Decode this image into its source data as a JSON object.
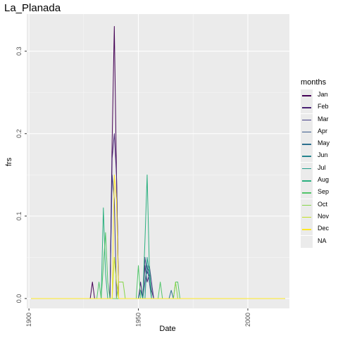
{
  "chart_data": {
    "type": "line",
    "title": "La_Planada",
    "xlabel": "Date",
    "ylabel": "frs",
    "xlim": [
      1899,
      2019
    ],
    "ylim": [
      -0.012,
      0.345
    ],
    "xticks": [
      "1900",
      "1950",
      "2000"
    ],
    "xtick_values": [
      1900,
      1950,
      2000
    ],
    "yticks": [
      "0.0",
      "0.1",
      "0.2",
      "0.3"
    ],
    "ytick_values": [
      0,
      0.1,
      0.2,
      0.3
    ],
    "grid": true,
    "legend_title": "months",
    "legend_position": "right",
    "series": [
      {
        "name": "Jan",
        "color": "#440154",
        "x": [
          1901,
          1928,
          1929,
          1930,
          1937,
          1938,
          1939,
          1940,
          1941,
          2017
        ],
        "y": [
          0,
          0,
          0.02,
          0,
          0,
          0.19,
          0.33,
          0.15,
          0,
          0
        ]
      },
      {
        "name": "Feb",
        "color": "#482173",
        "x": [
          1901,
          1937,
          1938,
          1939,
          1940,
          1941,
          1950,
          1951,
          1952,
          1953,
          1954,
          1955,
          1956,
          1957,
          2017
        ],
        "y": [
          0,
          0,
          0.17,
          0.2,
          0.15,
          0,
          0,
          0.02,
          0,
          0.04,
          0.02,
          0.03,
          0.01,
          0,
          0
        ]
      },
      {
        "name": "Mar",
        "color": "#433E85",
        "x": [
          1901,
          1937,
          1938,
          1939,
          1940,
          1952,
          1953,
          1954,
          1955,
          1956,
          1957,
          2017
        ],
        "y": [
          0,
          0,
          0.15,
          0.12,
          0,
          0,
          0.05,
          0.03,
          0.04,
          0.02,
          0,
          0
        ]
      },
      {
        "name": "Apr",
        "color": "#38598C",
        "x": [
          1901,
          1950,
          1951,
          1952,
          1953,
          1954,
          1955,
          1956,
          2017
        ],
        "y": [
          0,
          0,
          0.01,
          0,
          0.02,
          0.04,
          0.02,
          0,
          0
        ]
      },
      {
        "name": "May",
        "color": "#2D708E",
        "x": [
          1901,
          1964,
          1965,
          1966,
          2017
        ],
        "y": [
          0,
          0,
          0.01,
          0,
          0
        ]
      },
      {
        "name": "Jun",
        "color": "#25858E",
        "x": [
          1901,
          1950,
          1951,
          1952,
          2017
        ],
        "y": [
          0,
          0,
          0.01,
          0,
          0
        ]
      },
      {
        "name": "Jul",
        "color": "#1E9B8A",
        "x": [
          1901,
          1953,
          1954,
          1955,
          1956,
          2017
        ],
        "y": [
          0,
          0,
          0.05,
          0.03,
          0,
          0
        ]
      },
      {
        "name": "Aug",
        "color": "#2BB07F",
        "x": [
          1901,
          1933,
          1934,
          1935,
          1936,
          1952,
          1953,
          1954,
          1955,
          1956,
          2017
        ],
        "y": [
          0,
          0,
          0.11,
          0.03,
          0,
          0,
          0.07,
          0.15,
          0.04,
          0,
          0
        ]
      },
      {
        "name": "Sep",
        "color": "#51C56A",
        "x": [
          1901,
          1931,
          1932,
          1933,
          1934,
          1935,
          1936,
          1937,
          1949,
          1950,
          1951,
          1959,
          1960,
          1961,
          1966,
          1967,
          1968,
          1969,
          2017
        ],
        "y": [
          0,
          0,
          0.02,
          0,
          0.04,
          0.08,
          0.02,
          0,
          0,
          0.04,
          0,
          0,
          0.02,
          0,
          0,
          0.02,
          0.02,
          0,
          0
        ]
      },
      {
        "name": "Oct",
        "color": "#85D54A",
        "x": [
          1901,
          1940,
          1941,
          1942,
          1943,
          1944,
          1966,
          1967,
          1968,
          2017
        ],
        "y": [
          0,
          0,
          0.02,
          0.02,
          0.02,
          0,
          0,
          0.02,
          0,
          0
        ]
      },
      {
        "name": "Nov",
        "color": "#C2DF23",
        "x": [
          1901,
          1938,
          1939,
          1940,
          1941,
          2017
        ],
        "y": [
          0,
          0,
          0.05,
          0.02,
          0,
          0
        ]
      },
      {
        "name": "Dec",
        "color": "#FDE725",
        "x": [
          1901,
          1938,
          1939,
          1940,
          1941,
          2017
        ],
        "y": [
          0,
          0,
          0.15,
          0.12,
          0,
          0
        ]
      },
      {
        "name": "NA",
        "color": "#7F7F7F",
        "x": [],
        "y": []
      }
    ]
  }
}
